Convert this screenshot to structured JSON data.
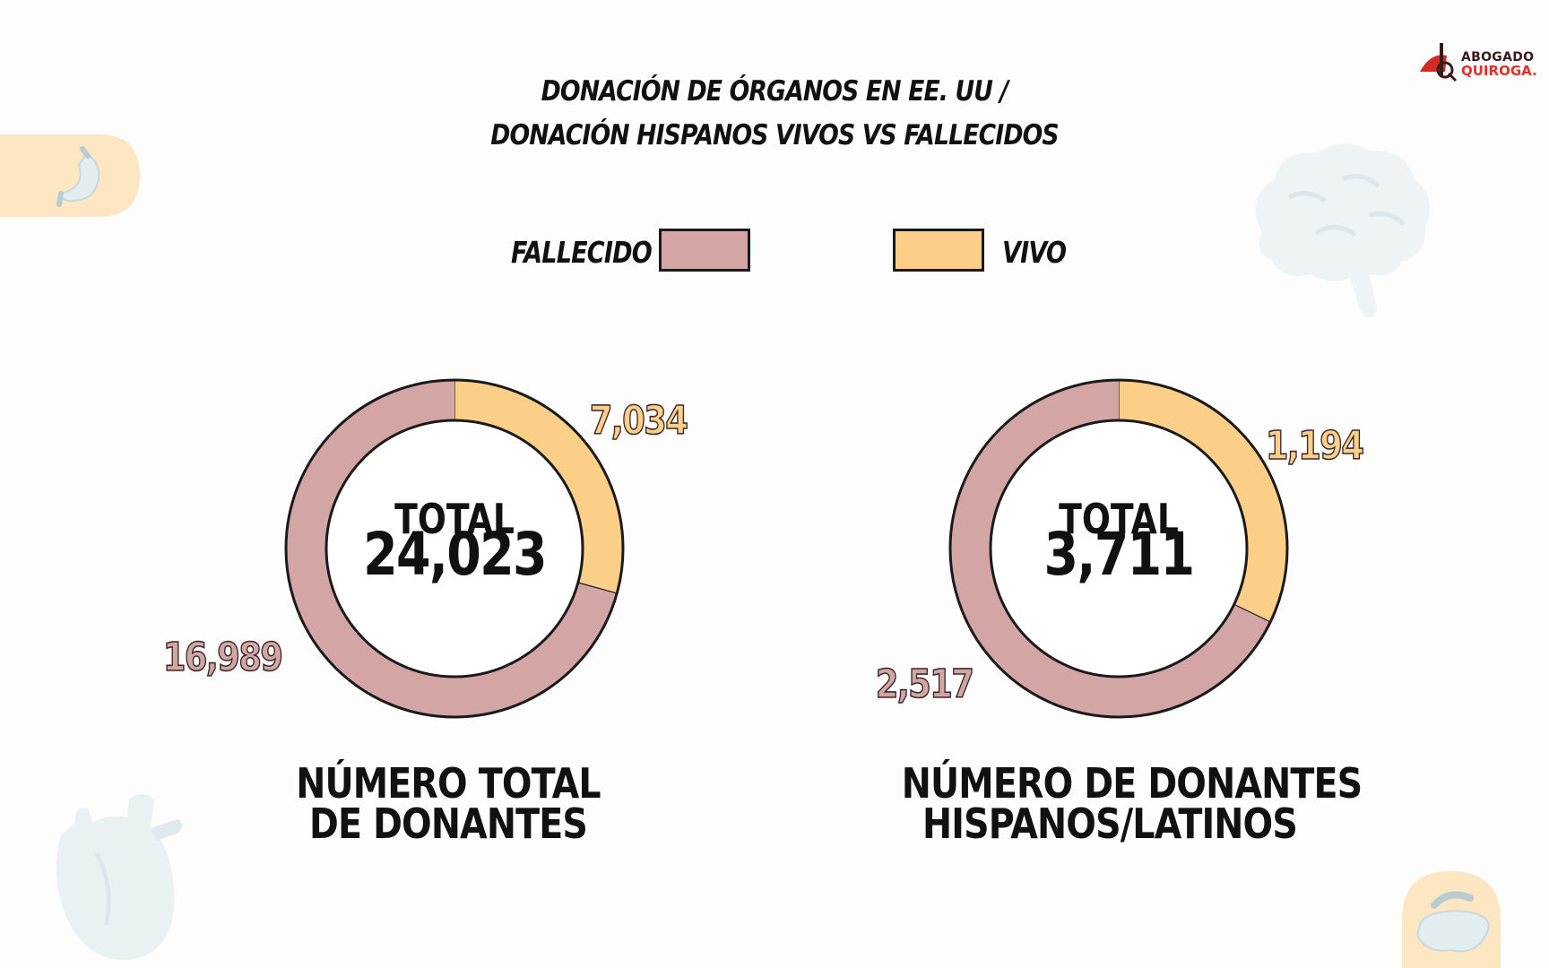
{
  "header": {
    "title_line1": "DONACIÓN DE ÓRGANOS EN EE. UU /",
    "title_line2": "DONACIÓN HISPANOS VIVOS VS FALLECIDOS"
  },
  "logo": {
    "line1": "ABOGADO",
    "line2": "QUIROGA."
  },
  "legend": {
    "deceased_label": "FALLECIDO",
    "living_label": "VIVO"
  },
  "colors": {
    "deceased": "#d4a5a5",
    "living": "#fccf88",
    "outline": "#1a1a1a",
    "decor_blob": "#fde6c2"
  },
  "icons": [
    "stomach-icon",
    "brain-icon",
    "heart-icon",
    "pancreas-icon",
    "logo-icon"
  ],
  "chart_data": [
    {
      "type": "pie",
      "title": "NÚMERO TOTAL DE DONANTES",
      "title_line1": "NÚMERO TOTAL",
      "title_line2": "DE DONANTES",
      "center_label": "TOTAL",
      "center_value": "24,023",
      "total": 24023,
      "slices": [
        {
          "name": "VIVO",
          "value": 7034,
          "label": "7,034"
        },
        {
          "name": "FALLECIDO",
          "value": 16989,
          "label": "16,989"
        }
      ]
    },
    {
      "type": "pie",
      "title": "NÚMERO DE DONANTES HISPANOS/LATINOS",
      "title_line1": "NÚMERO DE DONANTES",
      "title_line2": "HISPANOS/LATINOS",
      "center_label": "TOTAL",
      "center_value": "3,711",
      "total": 3711,
      "slices": [
        {
          "name": "VIVO",
          "value": 1194,
          "label": "1,194"
        },
        {
          "name": "FALLECIDO",
          "value": 2517,
          "label": "2,517"
        }
      ]
    }
  ]
}
